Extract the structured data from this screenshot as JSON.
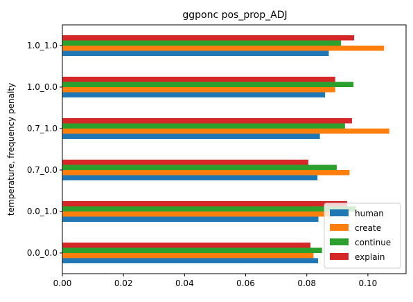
{
  "chart_data": {
    "type": "bar",
    "orientation": "horizontal",
    "title": "ggponc pos_prop_ADJ",
    "xlabel": "",
    "ylabel": "temperature, frequency penalty",
    "categories": [
      "0.0_0.0",
      "0.0_1.0",
      "0.7_0.0",
      "0.7_1.0",
      "1.0_0.0",
      "1.0_1.0"
    ],
    "series": [
      {
        "name": "human",
        "color": "#1f77b4",
        "values": [
          0.0837,
          0.0838,
          0.0835,
          0.0843,
          0.086,
          0.0872
        ]
      },
      {
        "name": "create",
        "color": "#ff7f0e",
        "values": [
          0.0822,
          0.0885,
          0.094,
          0.107,
          0.0893,
          0.1053
        ]
      },
      {
        "name": "continue",
        "color": "#2ca02c",
        "values": [
          0.085,
          0.096,
          0.0898,
          0.0925,
          0.0953,
          0.0912
        ]
      },
      {
        "name": "explain",
        "color": "#d62728",
        "values": [
          0.0812,
          0.0932,
          0.0805,
          0.0948,
          0.0893,
          0.0955
        ]
      }
    ],
    "xticks": [
      "0.00",
      "0.02",
      "0.04",
      "0.06",
      "0.08",
      "0.10"
    ],
    "xlim": [
      0,
      0.1125
    ],
    "grid": false,
    "legend": "lower right"
  }
}
